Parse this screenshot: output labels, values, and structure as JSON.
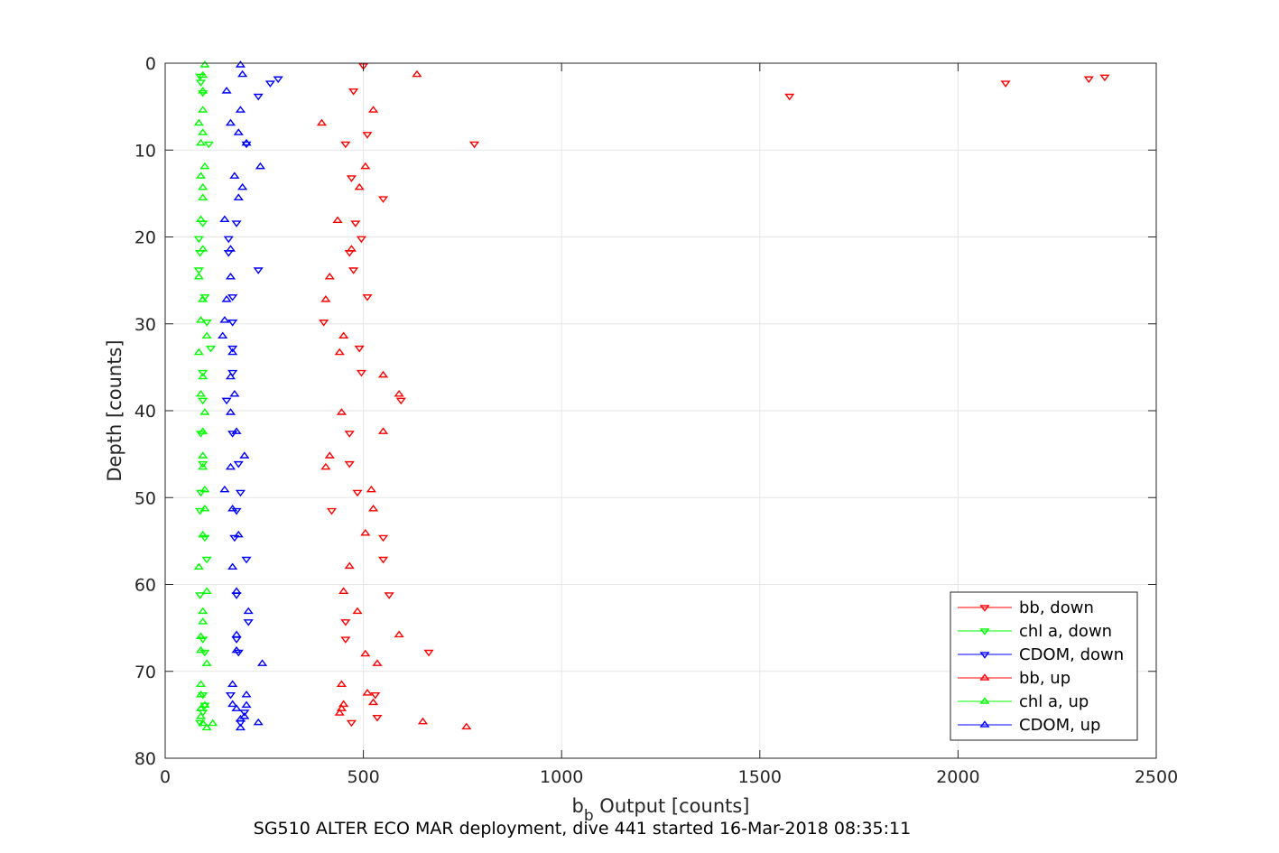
{
  "chart_data": {
    "type": "scatter",
    "xlabel": {
      "main": "b",
      "sub": "b",
      "rest": " Output [counts]"
    },
    "ylabel": "Depth [counts]",
    "caption": "SG510 ALTER ECO MAR deployment, dive 441 started 16-Mar-2018 08:35:11",
    "xlim": [
      0,
      2500
    ],
    "ylim": [
      0,
      80
    ],
    "y_reversed": true,
    "xticks": [
      0,
      500,
      1000,
      1500,
      2000,
      2500
    ],
    "xtick_labels": [
      "0",
      "500",
      "1000",
      "1500",
      "2000",
      "2500"
    ],
    "yticks": [
      0,
      10,
      20,
      30,
      40,
      50,
      60,
      70,
      80
    ],
    "ytick_labels": [
      "0",
      "10",
      "20",
      "30",
      "40",
      "50",
      "60",
      "70",
      "80"
    ],
    "grid": true,
    "legend_position": "lower-right",
    "series": [
      {
        "name": "bb, down",
        "color": "#ff0000",
        "marker": "triangle-down",
        "points": [
          [
            500,
            0.3
          ],
          [
            2370,
            1.6
          ],
          [
            2330,
            1.8
          ],
          [
            2120,
            2.3
          ],
          [
            475,
            3.2
          ],
          [
            1575,
            3.8
          ],
          [
            510,
            8.2
          ],
          [
            455,
            9.3
          ],
          [
            780,
            9.3
          ],
          [
            470,
            13.2
          ],
          [
            550,
            15.6
          ],
          [
            480,
            18.4
          ],
          [
            495,
            20.2
          ],
          [
            465,
            21.8
          ],
          [
            475,
            23.8
          ],
          [
            510,
            26.9
          ],
          [
            400,
            29.8
          ],
          [
            490,
            32.8
          ],
          [
            495,
            35.6
          ],
          [
            595,
            38.8
          ],
          [
            465,
            42.6
          ],
          [
            465,
            46.1
          ],
          [
            485,
            49.4
          ],
          [
            420,
            51.5
          ],
          [
            550,
            54.6
          ],
          [
            550,
            57.1
          ],
          [
            565,
            61.2
          ],
          [
            455,
            64.3
          ],
          [
            665,
            67.8
          ],
          [
            455,
            66.3
          ],
          [
            530,
            72.7
          ],
          [
            535,
            75.3
          ],
          [
            470,
            75.9
          ]
        ]
      },
      {
        "name": "chl a, down",
        "color": "#00ff00",
        "marker": "triangle-down",
        "points": [
          [
            88,
            1.5
          ],
          [
            90,
            2.2
          ],
          [
            95,
            3.4
          ],
          [
            110,
            9.3
          ],
          [
            95,
            18.4
          ],
          [
            85,
            20.2
          ],
          [
            88,
            21.8
          ],
          [
            85,
            23.8
          ],
          [
            100,
            26.9
          ],
          [
            105,
            29.8
          ],
          [
            115,
            32.8
          ],
          [
            95,
            35.6
          ],
          [
            95,
            38.8
          ],
          [
            90,
            42.6
          ],
          [
            95,
            46.1
          ],
          [
            90,
            49.4
          ],
          [
            88,
            51.5
          ],
          [
            100,
            54.6
          ],
          [
            105,
            57.1
          ],
          [
            88,
            61.2
          ],
          [
            95,
            66.3
          ],
          [
            100,
            67.8
          ],
          [
            95,
            72.7
          ],
          [
            100,
            73.9
          ],
          [
            95,
            74.7
          ],
          [
            88,
            75.9
          ]
        ]
      },
      {
        "name": "CDOM, down",
        "color": "#0000ff",
        "marker": "triangle-down",
        "points": [
          [
            285,
            1.8
          ],
          [
            265,
            2.3
          ],
          [
            235,
            3.8
          ],
          [
            205,
            9.3
          ],
          [
            180,
            18.4
          ],
          [
            160,
            20.2
          ],
          [
            160,
            21.8
          ],
          [
            235,
            23.8
          ],
          [
            170,
            26.9
          ],
          [
            170,
            29.8
          ],
          [
            170,
            32.8
          ],
          [
            170,
            35.6
          ],
          [
            155,
            38.8
          ],
          [
            170,
            42.6
          ],
          [
            185,
            46.1
          ],
          [
            190,
            49.4
          ],
          [
            180,
            51.5
          ],
          [
            175,
            54.6
          ],
          [
            205,
            57.1
          ],
          [
            180,
            61.2
          ],
          [
            210,
            64.3
          ],
          [
            180,
            66.3
          ],
          [
            185,
            67.8
          ],
          [
            165,
            72.7
          ],
          [
            200,
            74.7
          ],
          [
            190,
            75.9
          ]
        ]
      },
      {
        "name": "bb, up",
        "color": "#ff0000",
        "marker": "triangle-up",
        "points": [
          [
            635,
            1.3
          ],
          [
            525,
            5.4
          ],
          [
            395,
            6.9
          ],
          [
            505,
            11.9
          ],
          [
            490,
            14.3
          ],
          [
            435,
            18.1
          ],
          [
            470,
            21.4
          ],
          [
            415,
            24.6
          ],
          [
            405,
            27.2
          ],
          [
            450,
            31.4
          ],
          [
            440,
            33.3
          ],
          [
            550,
            35.9
          ],
          [
            590,
            38.1
          ],
          [
            445,
            40.2
          ],
          [
            550,
            42.4
          ],
          [
            415,
            45.2
          ],
          [
            405,
            46.5
          ],
          [
            520,
            49.1
          ],
          [
            525,
            51.3
          ],
          [
            505,
            54.1
          ],
          [
            465,
            57.9
          ],
          [
            450,
            60.8
          ],
          [
            485,
            63.1
          ],
          [
            590,
            65.8
          ],
          [
            505,
            68.0
          ],
          [
            535,
            69.1
          ],
          [
            445,
            71.5
          ],
          [
            510,
            72.5
          ],
          [
            525,
            73.6
          ],
          [
            450,
            73.8
          ],
          [
            445,
            74.3
          ],
          [
            440,
            74.8
          ],
          [
            650,
            75.8
          ],
          [
            760,
            76.4
          ]
        ]
      },
      {
        "name": "chl a, up",
        "color": "#00ff00",
        "marker": "triangle-up",
        "points": [
          [
            100,
            0.2
          ],
          [
            95,
            1.4
          ],
          [
            95,
            3.2
          ],
          [
            95,
            5.4
          ],
          [
            85,
            6.9
          ],
          [
            95,
            8.0
          ],
          [
            90,
            9.2
          ],
          [
            100,
            11.9
          ],
          [
            90,
            13.0
          ],
          [
            95,
            14.3
          ],
          [
            95,
            15.5
          ],
          [
            90,
            18.0
          ],
          [
            95,
            21.4
          ],
          [
            85,
            24.6
          ],
          [
            95,
            27.2
          ],
          [
            90,
            29.6
          ],
          [
            105,
            31.4
          ],
          [
            85,
            33.3
          ],
          [
            95,
            36.1
          ],
          [
            90,
            38.1
          ],
          [
            100,
            40.2
          ],
          [
            95,
            42.4
          ],
          [
            95,
            45.2
          ],
          [
            95,
            46.5
          ],
          [
            100,
            49.1
          ],
          [
            100,
            51.3
          ],
          [
            95,
            54.3
          ],
          [
            85,
            58.0
          ],
          [
            105,
            60.8
          ],
          [
            95,
            63.1
          ],
          [
            95,
            64.3
          ],
          [
            90,
            66.0
          ],
          [
            90,
            67.6
          ],
          [
            105,
            69.1
          ],
          [
            90,
            71.5
          ],
          [
            90,
            72.7
          ],
          [
            100,
            73.9
          ],
          [
            90,
            74.3
          ],
          [
            90,
            75.2
          ],
          [
            95,
            76.0
          ],
          [
            105,
            76.5
          ],
          [
            120,
            76.0
          ]
        ]
      },
      {
        "name": "CDOM, up",
        "color": "#0000ff",
        "marker": "triangle-up",
        "points": [
          [
            190,
            0.2
          ],
          [
            195,
            1.3
          ],
          [
            155,
            3.2
          ],
          [
            190,
            5.4
          ],
          [
            165,
            6.9
          ],
          [
            185,
            8.0
          ],
          [
            205,
            9.2
          ],
          [
            240,
            11.9
          ],
          [
            175,
            13.0
          ],
          [
            195,
            14.3
          ],
          [
            185,
            15.5
          ],
          [
            150,
            18.0
          ],
          [
            165,
            21.4
          ],
          [
            165,
            24.6
          ],
          [
            155,
            27.2
          ],
          [
            150,
            29.6
          ],
          [
            145,
            31.4
          ],
          [
            170,
            33.3
          ],
          [
            165,
            36.1
          ],
          [
            175,
            38.1
          ],
          [
            165,
            40.2
          ],
          [
            180,
            42.4
          ],
          [
            200,
            45.2
          ],
          [
            165,
            46.5
          ],
          [
            150,
            49.1
          ],
          [
            170,
            51.3
          ],
          [
            185,
            54.3
          ],
          [
            170,
            58.0
          ],
          [
            180,
            60.8
          ],
          [
            210,
            63.1
          ],
          [
            180,
            65.8
          ],
          [
            180,
            67.6
          ],
          [
            245,
            69.1
          ],
          [
            170,
            71.5
          ],
          [
            205,
            72.7
          ],
          [
            170,
            73.8
          ],
          [
            205,
            73.9
          ],
          [
            180,
            74.3
          ],
          [
            200,
            75.2
          ],
          [
            190,
            75.5
          ],
          [
            235,
            75.9
          ],
          [
            190,
            76.5
          ]
        ]
      }
    ]
  }
}
